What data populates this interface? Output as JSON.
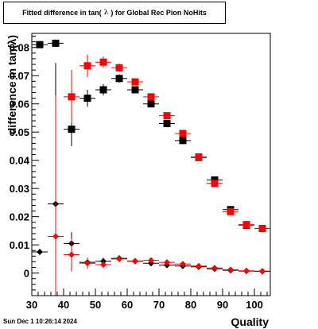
{
  "title_parts": [
    "Fitted difference in tan(",
    "λ",
    ") for Global Rec Pion NoHits"
  ],
  "footer": "Sun Dec  1 10:26:14 2024",
  "colors": {
    "black": "#000000",
    "red": "#ff0000"
  },
  "chart_data": {
    "type": "scatter",
    "xlabel": "Quality",
    "ylabel": "difference in tan(λ)",
    "xlim": [
      30,
      105
    ],
    "ylim": [
      -0.008,
      0.085
    ],
    "x_ticks": [
      30,
      40,
      50,
      60,
      70,
      80,
      90,
      100
    ],
    "y_ticks": [
      0,
      0.01,
      0.02,
      0.03,
      0.04,
      0.05,
      0.06,
      0.07,
      0.08
    ],
    "y_tick_labels": [
      "0",
      "0.01",
      "0.02",
      "0.03",
      "0.04",
      "0.05",
      "0.06",
      "0.07",
      "0.08"
    ],
    "grid": false,
    "series": [
      {
        "marker": "square",
        "color": "#000000",
        "x": [
          32.5,
          37.5,
          42.5,
          47.5,
          52.5,
          57.5,
          62.5,
          67.5,
          72.5,
          77.5,
          82.5,
          87.5,
          92.5,
          97.5,
          102.5
        ],
        "y": [
          0.081,
          0.0815,
          0.051,
          0.062,
          0.065,
          0.069,
          0.065,
          0.06,
          0.053,
          0.047,
          0.041,
          0.033,
          0.0225,
          0.017,
          0.0158
        ],
        "err": [
          0.0,
          0.0,
          0.006,
          0.003,
          0.002,
          0.0015,
          0.001,
          0.001,
          0.001,
          0.001,
          0.0008,
          0.0008,
          0.0008,
          0.0008,
          0.0008
        ]
      },
      {
        "marker": "square",
        "color": "#ff0000",
        "x": [
          42.5,
          47.5,
          52.5,
          57.5,
          62.5,
          67.5,
          72.5,
          77.5,
          82.5,
          87.5,
          92.5,
          97.5,
          102.5
        ],
        "y": [
          0.0625,
          0.0735,
          0.0748,
          0.0728,
          0.0678,
          0.0625,
          0.0558,
          0.0495,
          0.0412,
          0.0318,
          0.0218,
          0.0172,
          0.0158
        ],
        "err": [
          0.0095,
          0.004,
          0.002,
          0.0015,
          0.001,
          0.001,
          0.001,
          0.001,
          0.0008,
          0.0008,
          0.0008,
          0.0008,
          0.0008
        ]
      },
      {
        "marker": "diamond",
        "color": "#000000",
        "x": [
          32.5,
          37.5,
          42.5,
          47.5,
          52.5,
          57.5,
          62.5,
          67.5,
          72.5,
          77.5,
          82.5,
          87.5,
          92.5,
          97.5,
          102.5
        ],
        "y": [
          0.0075,
          0.0245,
          0.0105,
          0.0038,
          0.0042,
          0.0052,
          0.0042,
          0.0035,
          0.0028,
          0.0025,
          0.0022,
          0.0015,
          0.001,
          0.0007,
          0.0006
        ],
        "err": [
          0.0,
          0.05,
          0.004,
          0.0015,
          0.0012,
          0.0008,
          0.0006,
          0.0005,
          0.0004,
          0.0004,
          0.0003,
          0.0003,
          0.0003,
          0.0003,
          0.0003
        ]
      },
      {
        "marker": "diamond",
        "color": "#ff0000",
        "x": [
          37.5,
          42.5,
          47.5,
          52.5,
          57.5,
          62.5,
          67.5,
          72.5,
          77.5,
          82.5,
          87.5,
          92.5,
          97.5,
          102.5
        ],
        "y": [
          0.013,
          0.0065,
          0.0035,
          0.003,
          0.005,
          0.0043,
          0.0045,
          0.0038,
          0.0032,
          0.0025,
          0.0018,
          0.0012,
          0.0008,
          0.0007
        ],
        "err": [
          0.05,
          0.006,
          0.002,
          0.0012,
          0.0008,
          0.0006,
          0.0005,
          0.0004,
          0.0004,
          0.0003,
          0.0003,
          0.0003,
          0.0003,
          0.0003
        ]
      }
    ]
  }
}
